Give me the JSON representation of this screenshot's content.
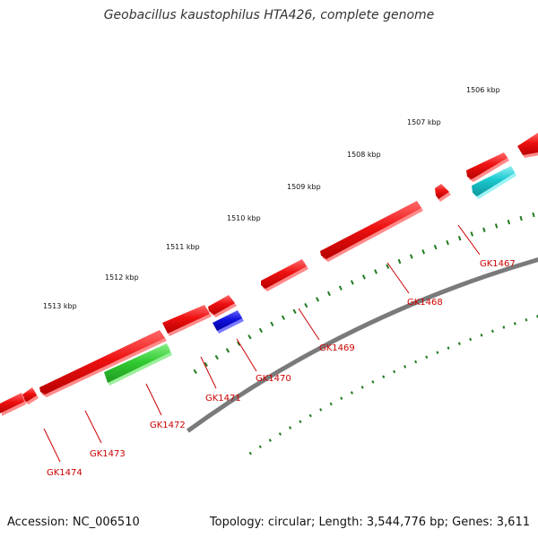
{
  "title": "Geobacillus kaustophilus HTA426, complete genome",
  "accession": "Accession: NC_006510",
  "stats": "Topology: circular; Length: 3,544,776 bp; Genes: 3,611",
  "colors": {
    "backbone": "#7a7a7a",
    "tick": "#1f7a1f",
    "gene_red": "#ee1111",
    "gene_green": "#33cc33",
    "gene_blue": "#1111dd",
    "gene_cyan": "#19c9cf",
    "label": "#cc0000"
  },
  "scale_labels": [
    "1506 kbp",
    "1507 kbp",
    "1508 kbp",
    "1509 kbp",
    "1510 kbp",
    "1511 kbp",
    "1512 kbp",
    "1513 kbp"
  ],
  "genes": [
    {
      "name": "GK1467",
      "strand": "-",
      "color": "cyan"
    },
    {
      "name": "GK1468",
      "strand": "+",
      "color": "red"
    },
    {
      "name": "GK1469",
      "strand": "+",
      "color": "red"
    },
    {
      "name": "GK1470",
      "strand": "-",
      "color": "blue"
    },
    {
      "name": "GK1471",
      "strand": "+",
      "color": "red"
    },
    {
      "name": "GK1472",
      "strand": "-",
      "color": "green"
    },
    {
      "name": "GK1473",
      "strand": "+",
      "color": "red"
    },
    {
      "name": "GK1474",
      "strand": "+",
      "color": "red"
    }
  ]
}
